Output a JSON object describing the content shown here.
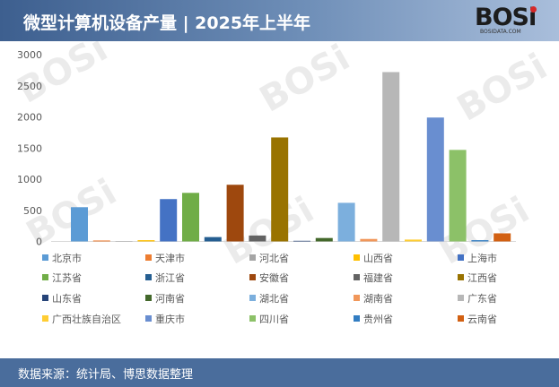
{
  "header": {
    "title": "微型计算机设备产量 | 2025年上半年",
    "logo_text": "BOSi",
    "logo_subtext": "BOSIDATA.COM"
  },
  "footer": {
    "source": "数据来源：统计局、博思数据整理"
  },
  "chart_data": {
    "type": "bar",
    "title": "",
    "xlabel": "",
    "ylabel": "",
    "ylim": [
      0,
      3000
    ],
    "yticks": [
      "0",
      "500",
      "1000",
      "1500",
      "2000",
      "2500",
      "3000"
    ],
    "grid": false,
    "legend_position": "bottom",
    "categories": [
      "北京市",
      "天津市",
      "河北省",
      "山西省",
      "上海市",
      "江苏省",
      "浙江省",
      "安徽省",
      "福建省",
      "江西省",
      "山东省",
      "河南省",
      "湖北省",
      "湖南省",
      "广东省",
      "广西壮族自治区",
      "重庆市",
      "四川省",
      "贵州省",
      "云南省"
    ],
    "values": [
      550,
      15,
      5,
      20,
      680,
      780,
      70,
      910,
      95,
      1670,
      10,
      55,
      620,
      40,
      2720,
      30,
      1990,
      1470,
      20,
      130
    ],
    "colors": [
      "#5b9bd5",
      "#ed7d31",
      "#a5a5a5",
      "#ffc000",
      "#4472c4",
      "#70ad47",
      "#255e91",
      "#9e480e",
      "#636363",
      "#997300",
      "#264478",
      "#43682b",
      "#7cafdd",
      "#f1975a",
      "#b7b7b7",
      "#ffcd33",
      "#698ed0",
      "#8cc168",
      "#327dc2",
      "#d26012"
    ]
  }
}
